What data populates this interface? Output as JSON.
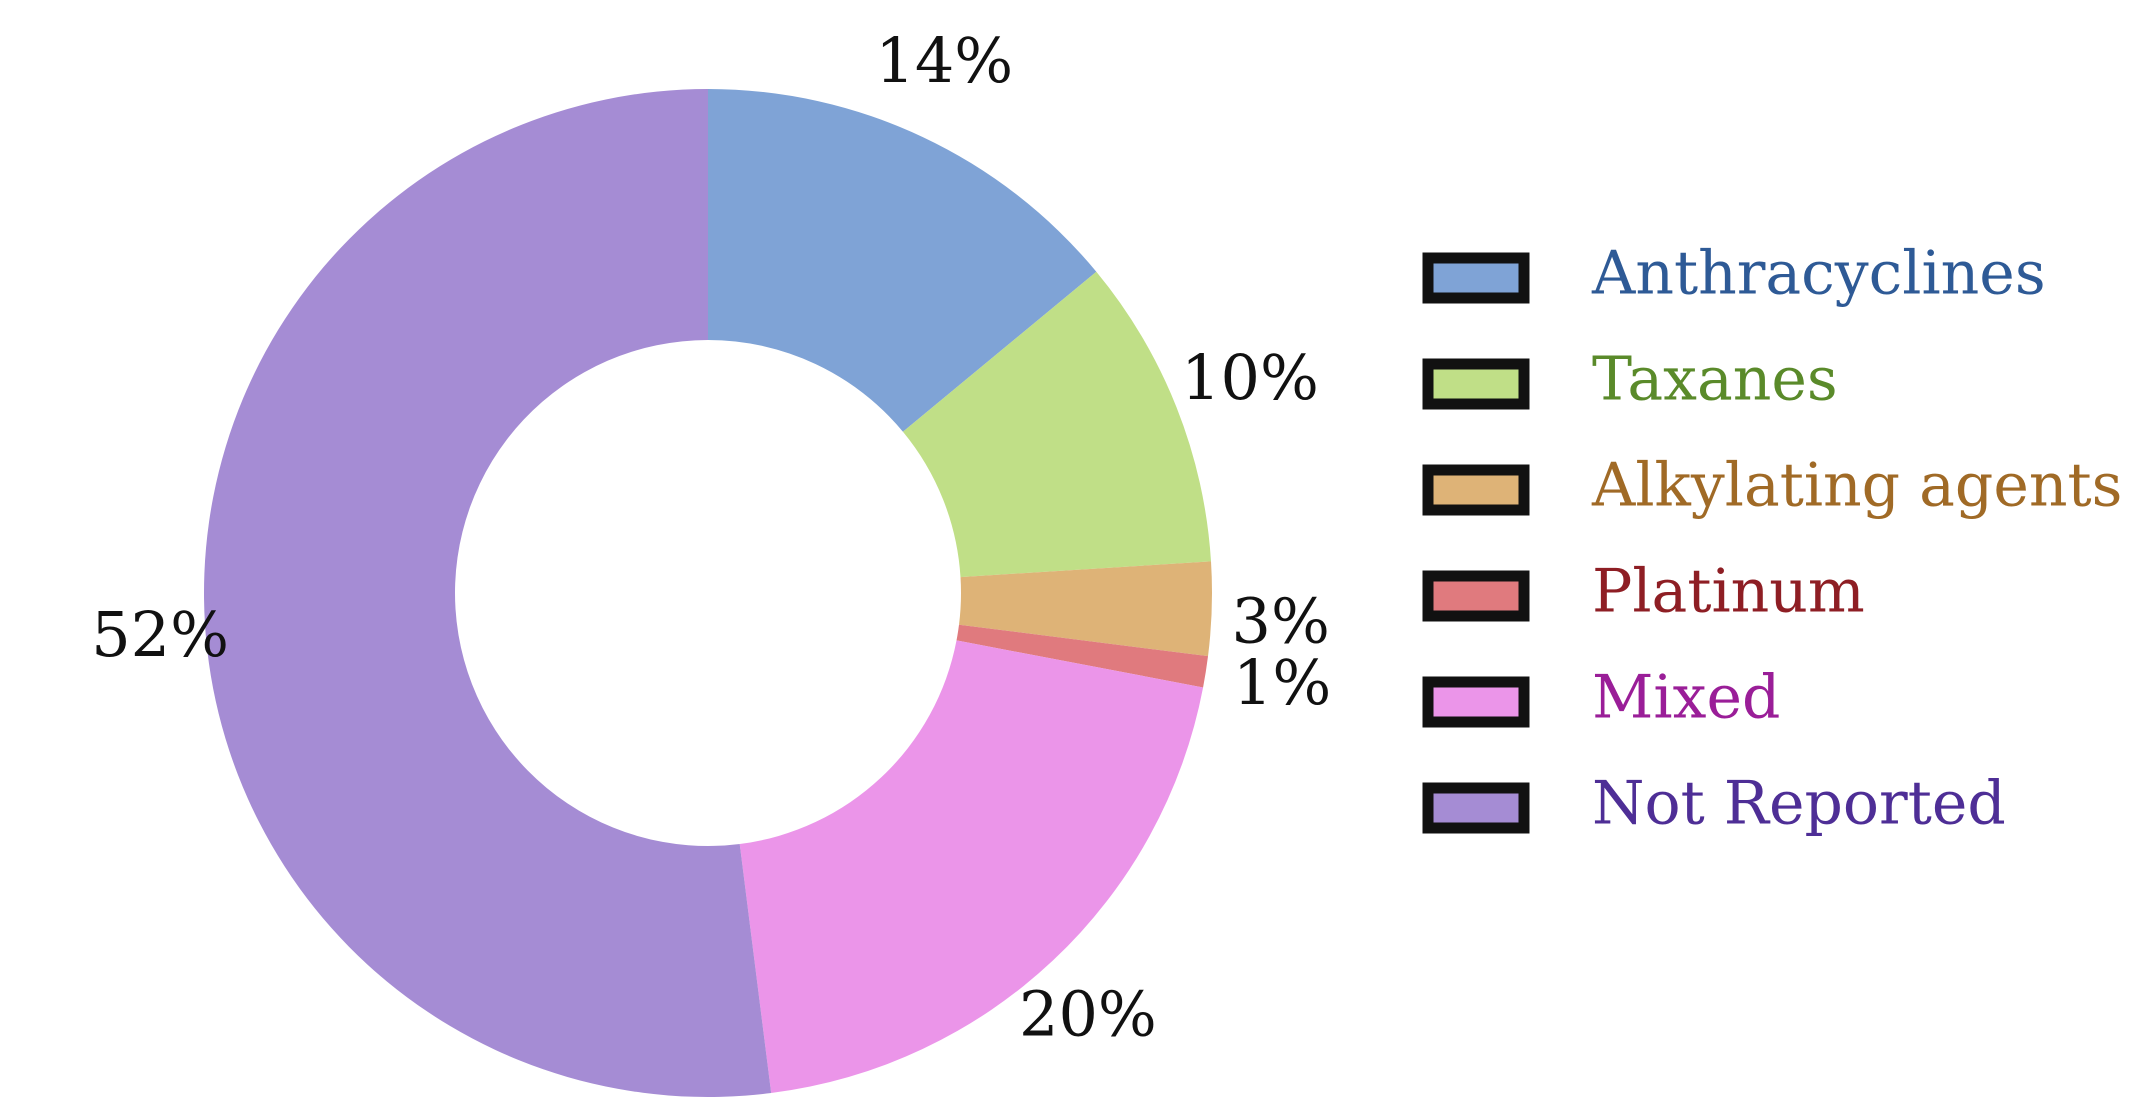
{
  "chart_data": {
    "type": "pie",
    "donut": true,
    "title": "",
    "legend_position": "right",
    "slices": [
      {
        "label": "Anthracyclines",
        "value": 14,
        "display": "14%",
        "color": "#7FA3D6",
        "text_color": "#2E5A96"
      },
      {
        "label": "Taxanes",
        "value": 10,
        "display": "10%",
        "color": "#C0DF87",
        "text_color": "#5A8A2A"
      },
      {
        "label": "Alkylating agents",
        "value": 3,
        "display": "3%",
        "color": "#DEB377",
        "text_color": "#A06A26"
      },
      {
        "label": "Platinum",
        "value": 1,
        "display": "1%",
        "color": "#E07A7E",
        "text_color": "#8E1E24"
      },
      {
        "label": "Mixed",
        "value": 20,
        "display": "20%",
        "color": "#EB95E9",
        "text_color": "#9A1E98"
      },
      {
        "label": "Not Reported",
        "value": 52,
        "display": "52%",
        "color": "#A58CD4",
        "text_color": "#4E2E96"
      }
    ]
  }
}
